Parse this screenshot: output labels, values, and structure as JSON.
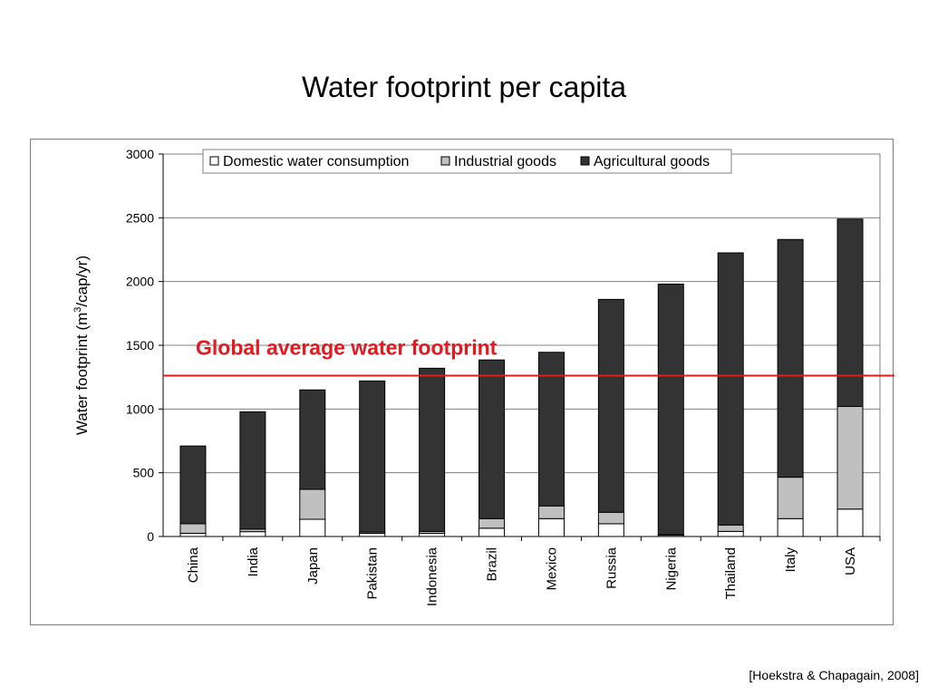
{
  "slide": {
    "title": "Water footprint per capita",
    "citation": "[Hoekstra & Chapagain, 2008]"
  },
  "chart_data": {
    "type": "bar",
    "stacked": true,
    "title": "",
    "xlabel": "",
    "ylabel": "Water footprint (m³/cap/yr)",
    "ylabel_parts": {
      "before": "Water footprint (m",
      "sup": "3",
      "after": "/cap/yr)"
    },
    "ylim": [
      0,
      3000
    ],
    "yticks": [
      0,
      500,
      1000,
      1500,
      2000,
      2500,
      3000
    ],
    "grid": true,
    "legend_position": "top",
    "categories": [
      "China",
      "India",
      "Japan",
      "Pakistan",
      "Indonesia",
      "Brazil",
      "Mexico",
      "Russia",
      "Nigeria",
      "Thailand",
      "Italy",
      "USA"
    ],
    "series": [
      {
        "name": "Domestic water consumption",
        "color": "#ffffff",
        "values": [
          25,
          38,
          135,
          25,
          25,
          65,
          140,
          100,
          10,
          40,
          140,
          215
        ]
      },
      {
        "name": "Industrial goods",
        "color": "#c0c0c0",
        "values": [
          75,
          20,
          235,
          10,
          15,
          75,
          100,
          90,
          5,
          50,
          325,
          805
        ]
      },
      {
        "name": "Agricultural goods",
        "color": "#333333",
        "values": [
          610,
          920,
          780,
          1185,
          1280,
          1245,
          1205,
          1670,
          1965,
          2135,
          1865,
          1470
        ]
      }
    ],
    "annotation": {
      "text": "Global average water footprint",
      "value": 1262,
      "color": "#e5191d"
    }
  }
}
